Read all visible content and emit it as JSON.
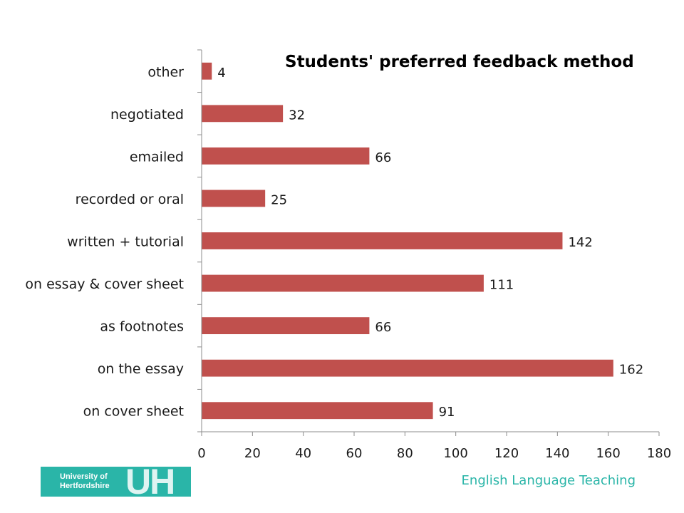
{
  "chart_data": {
    "type": "bar",
    "orientation": "horizontal",
    "title": "Students' preferred feedback method",
    "xlabel": "",
    "ylabel": "",
    "categories": [
      "on cover sheet",
      "on the essay",
      "as footnotes",
      "on essay & cover sheet",
      "written + tutorial",
      "recorded or oral",
      "emailed",
      "negotiated",
      "other"
    ],
    "values": [
      91,
      162,
      66,
      111,
      142,
      25,
      66,
      32,
      4
    ],
    "xlim": [
      0,
      180
    ],
    "xticks": [
      0,
      20,
      40,
      60,
      80,
      100,
      120,
      140,
      160,
      180
    ],
    "data_labels": true,
    "grid": false,
    "legend": "none",
    "bar_color": "#c0504d"
  },
  "footer": {
    "logo_text": "University of Hertfordshire",
    "logo_mark": "UH",
    "caption": "English Language Teaching",
    "accent_color": "#2ab5a8"
  }
}
